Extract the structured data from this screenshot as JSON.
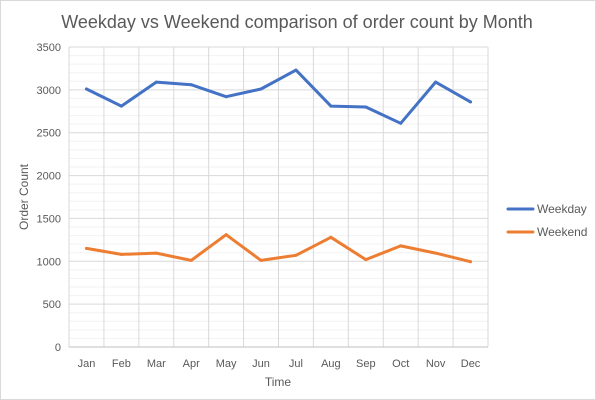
{
  "chart_data": {
    "type": "line",
    "title": "Weekday vs Weekend comparison of order count by Month",
    "xlabel": "Time",
    "ylabel": "Order Count",
    "categories": [
      "Jan",
      "Feb",
      "Mar",
      "Apr",
      "May",
      "Jun",
      "Jul",
      "Aug",
      "Sep",
      "Oct",
      "Nov",
      "Dec"
    ],
    "ylim": [
      0,
      3500
    ],
    "yticks": [
      0,
      500,
      1000,
      1500,
      2000,
      2500,
      3000,
      3500
    ],
    "grid": "on",
    "legend_position": "right",
    "series": [
      {
        "name": "Weekday",
        "color": "#4472c4",
        "values": [
          3010,
          2810,
          3090,
          3060,
          2920,
          3010,
          3230,
          2810,
          2800,
          2610,
          3090,
          2860
        ]
      },
      {
        "name": "Weekend",
        "color": "#ed7d31",
        "values": [
          1150,
          1080,
          1095,
          1010,
          1310,
          1010,
          1070,
          1280,
          1020,
          1180,
          1095,
          995
        ]
      }
    ]
  }
}
